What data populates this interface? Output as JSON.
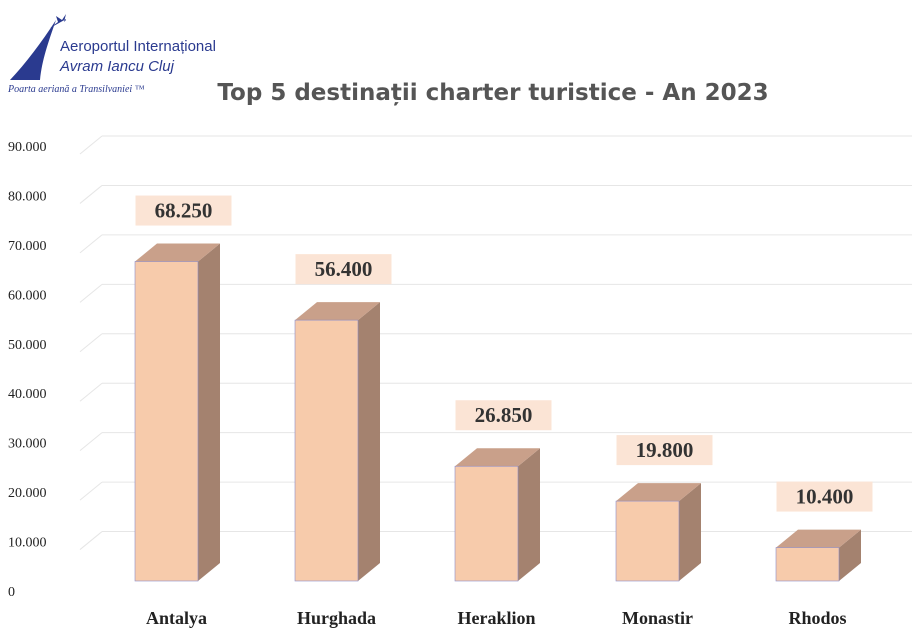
{
  "logo": {
    "line1": "Aeroportul Internațional",
    "line2": "Avram Iancu Cluj",
    "tagline": "Poarta aeriană a Transilvaniei ™"
  },
  "colors": {
    "bar_front": "#f7cbab",
    "bar_side": "#a4826f",
    "bar_top": "#c9a08a",
    "label_bg": "#fbe4d5",
    "logo_blue": "#2a3a8f",
    "grid": "#e6e6e6"
  },
  "chart_data": {
    "type": "bar",
    "title": "Top 5 destinații charter turistice - An 2023",
    "categories": [
      "Antalya",
      "Hurghada",
      "Heraklion",
      "Monastir",
      "Rhodos"
    ],
    "values": [
      68250,
      56400,
      26850,
      19800,
      10400
    ],
    "value_labels": [
      "68.250",
      "56.400",
      "26.850",
      "19.800",
      "10.400"
    ],
    "yticks": [
      "0",
      "10.000",
      "20.000",
      "30.000",
      "40.000",
      "50.000",
      "60.000",
      "70.000",
      "80.000",
      "90.000"
    ],
    "ylim": [
      0,
      90000
    ],
    "grid": true,
    "style": "3d-column"
  }
}
